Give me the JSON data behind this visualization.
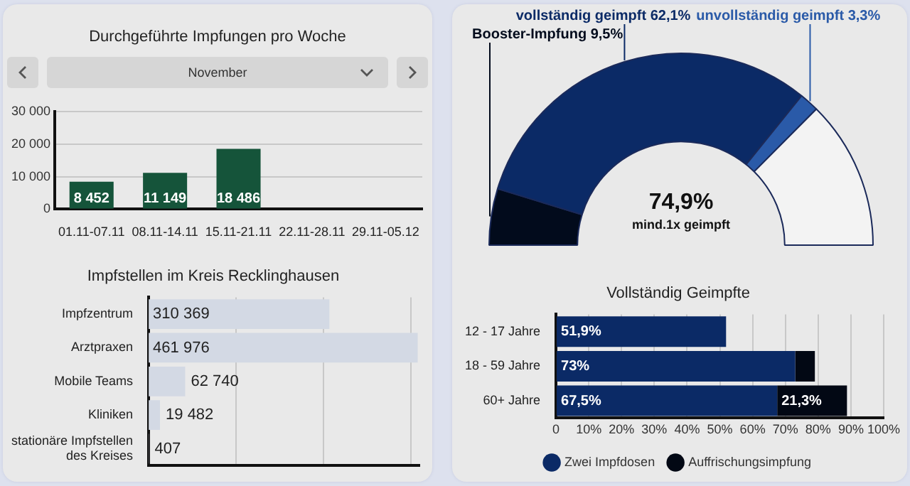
{
  "chart_data": [
    {
      "type": "bar",
      "title": "Durchgeführte Impfungen pro Woche",
      "annotations": [
        "November"
      ],
      "categories": [
        "01.11-07.11",
        "08.11-14.11",
        "15.11-21.11",
        "22.11-28.11",
        "29.11-05.12"
      ],
      "values": [
        8452,
        11149,
        18486,
        null,
        null
      ],
      "value_labels": [
        "8 452",
        "11 149",
        "18 486",
        null,
        null
      ],
      "color": "#15543a",
      "ylim": [
        0,
        30000
      ],
      "yticks": [
        0,
        {
          "value": 10000,
          "label": "10 000"
        },
        {
          "value": 20000,
          "label": "20 000"
        },
        {
          "value": 30000,
          "label": "30 000"
        }
      ],
      "grid": "y"
    },
    {
      "type": "bar",
      "orientation": "horizontal",
      "title": "Impfstellen im Kreis Recklinghausen",
      "categories": [
        "Impfzentrum",
        "Arztpraxen",
        "Mobile Teams",
        "Kliniken",
        "stationäre Impfstellen des Kreises"
      ],
      "values": [
        310369,
        461976,
        62740,
        19482,
        407
      ],
      "value_labels": [
        "310 369",
        "461 976",
        "62 740",
        "19 482",
        "407"
      ],
      "color": "#d3d9e4",
      "xlim": [
        0,
        465000
      ],
      "xticks": [
        {
          "value": 150000,
          "label": null
        },
        {
          "value": 300000,
          "label": null
        },
        {
          "value": 450000,
          "label": null
        }
      ],
      "grid": "x",
      "tick_labels": "y"
    },
    {
      "type": "donut",
      "annotations": [
        "74,9%",
        "mind.1x geimpft"
      ],
      "categories": [
        "Booster-Impfung",
        "vollständig geimpft",
        "unvollständig geimpft",
        null
      ],
      "values": [
        9.5,
        62.1,
        3.3,
        25.1
      ],
      "value_labels": [
        "9,5%",
        "62,1%",
        "3,3%",
        null
      ],
      "colors": [
        "#020b1c",
        "#0b2a66",
        "#2a5aa8",
        "#f3f3f3"
      ]
    },
    {
      "type": "bar",
      "orientation": "horizontal",
      "stacked": true,
      "title": "Vollständig Geimpfte",
      "categories": [
        "12 - 17 Jahre",
        "18 - 59 Jahre",
        "60+ Jahre"
      ],
      "series": [
        {
          "name": "Zwei Impfdosen",
          "color": "#0b2a66",
          "values": [
            51.9,
            73,
            67.5
          ],
          "value_labels": [
            "51,9%",
            "73%",
            "67,5%"
          ]
        },
        {
          "name": "Auffrischungsimpfung",
          "color": "#020814",
          "values": [
            null,
            6,
            21.3
          ],
          "value_labels": [
            null,
            null,
            "21,3%"
          ]
        }
      ],
      "xlim": [
        0,
        100
      ],
      "xticks": [
        0,
        {
          "value": 10,
          "label": "10%"
        },
        {
          "value": 20,
          "label": "20%"
        },
        {
          "value": 30,
          "label": "30%"
        },
        {
          "value": 40,
          "label": "40%"
        },
        {
          "value": 50,
          "label": "50%"
        },
        {
          "value": 60,
          "label": "60%"
        },
        {
          "value": 70,
          "label": "70%"
        },
        {
          "value": 80,
          "label": "80%"
        },
        {
          "value": 90,
          "label": "90%"
        },
        {
          "value": 100,
          "label": "100%"
        }
      ],
      "grid": "x",
      "legend": "bottom"
    }
  ]
}
